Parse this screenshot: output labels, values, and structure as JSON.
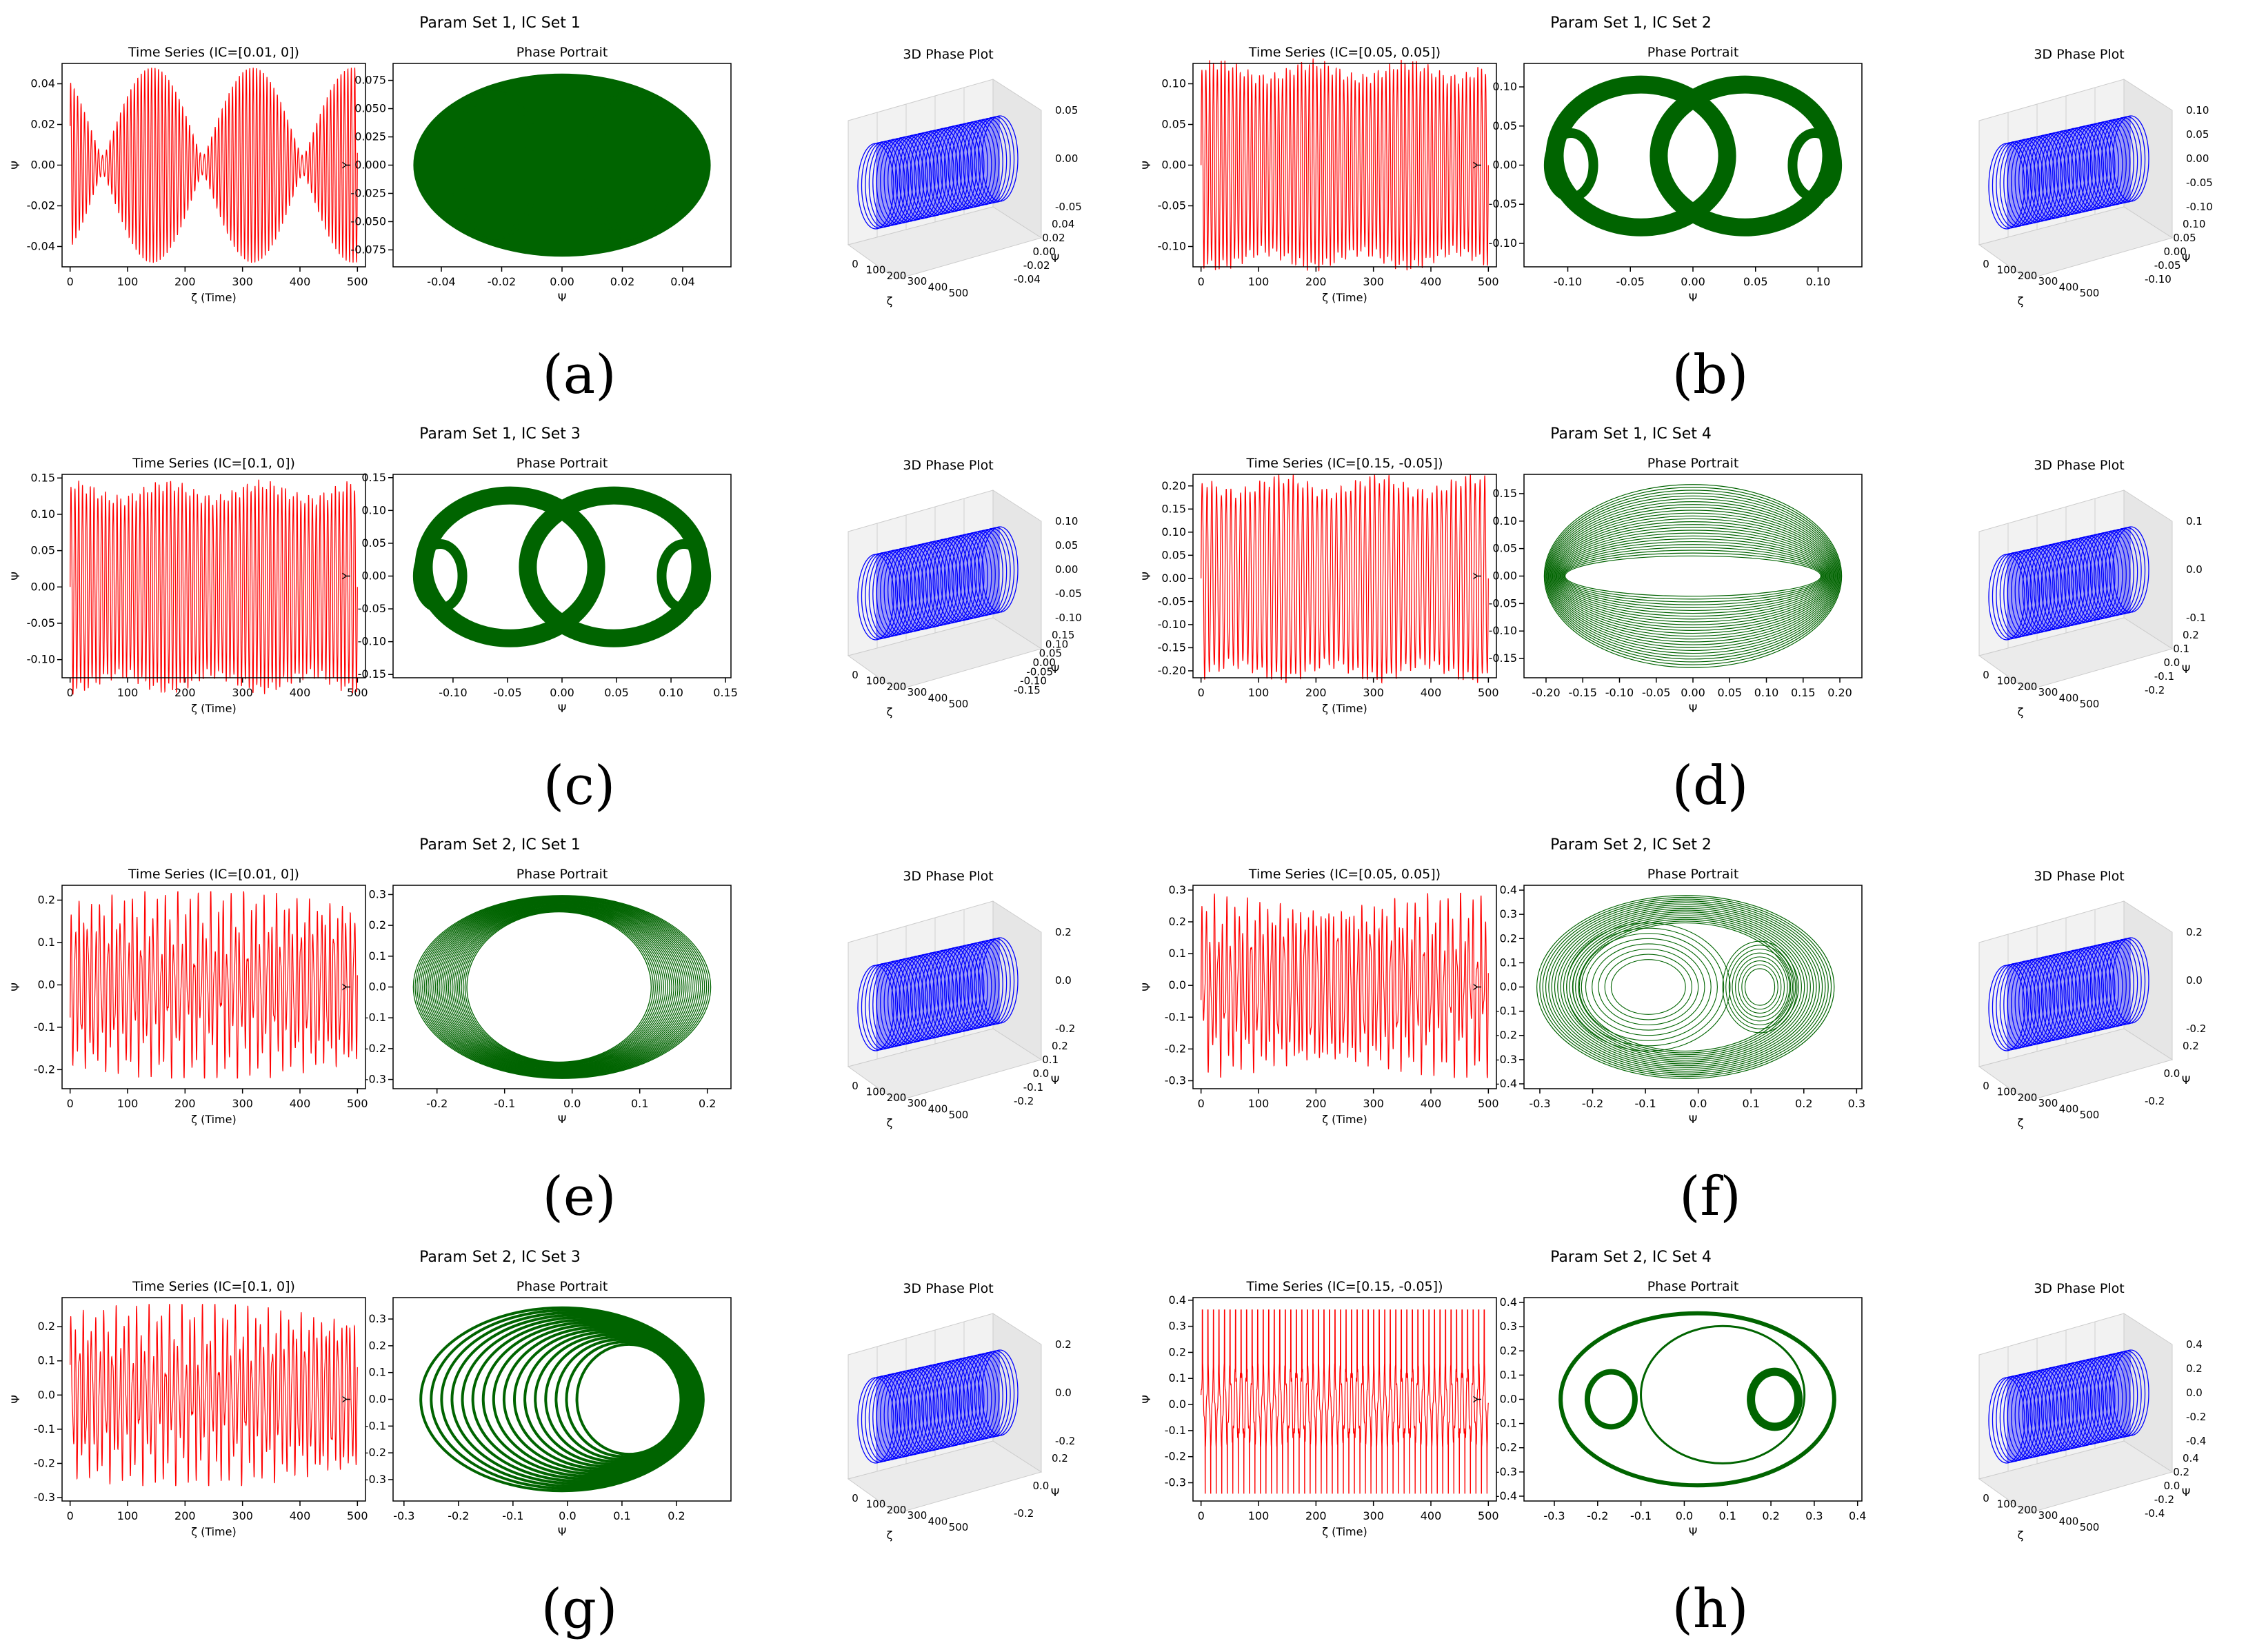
{
  "colors": {
    "time_series": "#ff0000",
    "phase_portrait": "#006400",
    "phase_3d": "#0000ff",
    "axes": "#000000",
    "pane": "#f2f2f2"
  },
  "panels": [
    {
      "id": "a",
      "caption": "(a)",
      "suptitle": "Param Set 1, IC Set 1",
      "time_series": {
        "title": "Time Series (IC=[0.01, 0])",
        "xlabel": "ζ (Time)",
        "ylabel": "Ψ",
        "xlim": [
          -14,
          514
        ],
        "ylim": [
          -0.05,
          0.05
        ],
        "xticks": [
          "0",
          "100",
          "200",
          "300",
          "400",
          "500"
        ],
        "yticks": [
          "-0.04",
          "-0.02",
          "0.00",
          "0.02",
          "0.04"
        ],
        "style": "beats",
        "amplitude": 0.048,
        "cycles": 82
      },
      "phase_portrait": {
        "title": "Phase Portrait",
        "xlabel": "Ψ",
        "ylabel": "Y",
        "xlim": [
          -0.056,
          0.056
        ],
        "ylim": [
          -0.09,
          0.09
        ],
        "xticks": [
          "-0.04",
          "-0.02",
          "0.00",
          "0.02",
          "0.04"
        ],
        "yticks": [
          "-0.075",
          "-0.050",
          "-0.025",
          "0.000",
          "0.025",
          "0.050",
          "0.075"
        ],
        "style": "torus"
      },
      "phase_3d": {
        "title": "3D Phase Plot",
        "xlabel": "ζ",
        "ylabel": "Ψ",
        "xticks": [
          "0",
          "100",
          "200",
          "300",
          "400",
          "500"
        ],
        "yticks": [
          "0.04",
          "0.02",
          "0.00",
          "-0.02",
          "-0.04"
        ],
        "zticks": [
          "0.05",
          "0.00",
          "-0.05"
        ]
      }
    },
    {
      "id": "b",
      "caption": "(b)",
      "suptitle": "Param Set 1, IC Set 2",
      "time_series": {
        "title": "Time Series (IC=[0.05, 0.05])",
        "xlabel": "ζ (Time)",
        "ylabel": "Ψ",
        "xlim": [
          -14,
          514
        ],
        "ylim": [
          -0.125,
          0.125
        ],
        "xticks": [
          "0",
          "100",
          "200",
          "300",
          "400",
          "500"
        ],
        "yticks": [
          "-0.10",
          "-0.05",
          "0.00",
          "0.05",
          "0.10"
        ],
        "style": "dense",
        "amplitude": 0.115,
        "cycles": 75
      },
      "phase_portrait": {
        "title": "Phase Portrait",
        "xlabel": "Ψ",
        "ylabel": "Y",
        "xlim": [
          -0.135,
          0.135
        ],
        "ylim": [
          -0.13,
          0.13
        ],
        "xticks": [
          "-0.10",
          "-0.05",
          "0.00",
          "0.05",
          "0.10"
        ],
        "yticks": [
          "-0.10",
          "-0.05",
          "0.00",
          "0.05",
          "0.10"
        ],
        "style": "twin-lobes"
      },
      "phase_3d": {
        "title": "3D Phase Plot",
        "xlabel": "ζ",
        "ylabel": "Ψ",
        "xticks": [
          "0",
          "100",
          "200",
          "300",
          "400",
          "500"
        ],
        "yticks": [
          "0.10",
          "0.05",
          "0.00",
          "-0.05",
          "-0.10"
        ],
        "zticks": [
          "0.10",
          "0.05",
          "0.00",
          "-0.05",
          "-0.10"
        ]
      }
    },
    {
      "id": "c",
      "caption": "(c)",
      "suptitle": "Param Set 1, IC Set 3",
      "time_series": {
        "title": "Time Series (IC=[0.1, 0])",
        "xlabel": "ζ (Time)",
        "ylabel": "Ψ",
        "xlim": [
          -14,
          514
        ],
        "ylim": [
          -0.125,
          0.155
        ],
        "xticks": [
          "0",
          "100",
          "200",
          "300",
          "400",
          "500"
        ],
        "yticks": [
          "-0.10",
          "-0.05",
          "0.00",
          "0.05",
          "0.10",
          "0.15"
        ],
        "style": "dense",
        "amplitude": 0.13,
        "cycles": 75
      },
      "phase_portrait": {
        "title": "Phase Portrait",
        "xlabel": "Ψ",
        "ylabel": "Y",
        "xlim": [
          -0.155,
          0.155
        ],
        "ylim": [
          -0.155,
          0.155
        ],
        "xticks": [
          "-0.10",
          "-0.05",
          "0.00",
          "0.05",
          "0.10",
          "0.15"
        ],
        "yticks": [
          "-0.15",
          "-0.10",
          "-0.05",
          "0.00",
          "0.05",
          "0.10",
          "0.15"
        ],
        "style": "twin-lobes"
      },
      "phase_3d": {
        "title": "3D Phase Plot",
        "xlabel": "ζ",
        "ylabel": "Ψ",
        "xticks": [
          "0",
          "100",
          "200",
          "300",
          "400",
          "500"
        ],
        "yticks": [
          "0.15",
          "0.10",
          "0.05",
          "0.00",
          "-0.05",
          "-0.10",
          "-0.15"
        ],
        "zticks": [
          "0.10",
          "0.05",
          "0.00",
          "-0.05",
          "-0.10"
        ]
      }
    },
    {
      "id": "d",
      "caption": "(d)",
      "suptitle": "Param Set 1, IC Set 4",
      "time_series": {
        "title": "Time Series (IC=[0.15, -0.05])",
        "xlabel": "ζ (Time)",
        "ylabel": "Ψ",
        "xlim": [
          -14,
          514
        ],
        "ylim": [
          -0.215,
          0.225
        ],
        "xticks": [
          "0",
          "100",
          "200",
          "300",
          "400",
          "500"
        ],
        "yticks": [
          "-0.20",
          "-0.15",
          "-0.10",
          "-0.05",
          "0.00",
          "0.05",
          "0.10",
          "0.15",
          "0.20"
        ],
        "style": "dense",
        "amplitude": 0.2,
        "cycles": 60
      },
      "phase_portrait": {
        "title": "Phase Portrait",
        "xlabel": "Ψ",
        "ylabel": "Y",
        "xlim": [
          -0.23,
          0.23
        ],
        "ylim": [
          -0.185,
          0.185
        ],
        "xticks": [
          "-0.20",
          "-0.15",
          "-0.10",
          "-0.05",
          "0.00",
          "0.05",
          "0.10",
          "0.15",
          "0.20"
        ],
        "yticks": [
          "-0.15",
          "-0.10",
          "-0.05",
          "0.00",
          "0.05",
          "0.10",
          "0.15"
        ],
        "style": "ring-mesh"
      },
      "phase_3d": {
        "title": "3D Phase Plot",
        "xlabel": "ζ",
        "ylabel": "Ψ",
        "xticks": [
          "0",
          "100",
          "200",
          "300",
          "400",
          "500"
        ],
        "yticks": [
          "0.2",
          "0.1",
          "0.0",
          "-0.1",
          "-0.2"
        ],
        "zticks": [
          "0.1",
          "0.0",
          "-0.1"
        ]
      }
    },
    {
      "id": "e",
      "caption": "(e)",
      "suptitle": "Param Set 2, IC Set 1",
      "time_series": {
        "title": "Time Series (IC=[0.01, 0])",
        "xlabel": "ζ (Time)",
        "ylabel": "Ψ",
        "xlim": [
          -14,
          514
        ],
        "ylim": [
          -0.245,
          0.235
        ],
        "xticks": [
          "0",
          "100",
          "200",
          "300",
          "400",
          "500"
        ],
        "yticks": [
          "-0.2",
          "-0.1",
          "0.0",
          "0.1",
          "0.2"
        ],
        "style": "chaotic",
        "amplitude": 0.22,
        "cycles": 70
      },
      "phase_portrait": {
        "title": "Phase Portrait",
        "xlabel": "Ψ",
        "ylabel": "Y",
        "xlim": [
          -0.265,
          0.235
        ],
        "ylim": [
          -0.33,
          0.33
        ],
        "xticks": [
          "-0.2",
          "-0.1",
          "0.0",
          "0.1",
          "0.2"
        ],
        "yticks": [
          "-0.3",
          "-0.2",
          "-0.1",
          "0.0",
          "0.1",
          "0.2",
          "0.3"
        ],
        "style": "crescent"
      },
      "phase_3d": {
        "title": "3D Phase Plot",
        "xlabel": "ζ",
        "ylabel": "Ψ",
        "xticks": [
          "0",
          "100",
          "200",
          "300",
          "400",
          "500"
        ],
        "yticks": [
          "0.2",
          "0.1",
          "0.0",
          "-0.1",
          "-0.2"
        ],
        "zticks": [
          "0.2",
          "0.0",
          "-0.2"
        ]
      }
    },
    {
      "id": "f",
      "caption": "(f)",
      "suptitle": "Param Set 2, IC Set 2",
      "time_series": {
        "title": "Time Series (IC=[0.05, 0.05])",
        "xlabel": "ζ (Time)",
        "ylabel": "Ψ",
        "xlim": [
          -14,
          514
        ],
        "ylim": [
          -0.325,
          0.315
        ],
        "xticks": [
          "0",
          "100",
          "200",
          "300",
          "400",
          "500"
        ],
        "yticks": [
          "-0.3",
          "-0.2",
          "-0.1",
          "0.0",
          "0.1",
          "0.2",
          "0.3"
        ],
        "style": "chaotic",
        "amplitude": 0.29,
        "cycles": 70
      },
      "phase_portrait": {
        "title": "Phase Portrait",
        "xlabel": "Ψ",
        "ylabel": "Y",
        "xlim": [
          -0.33,
          0.31
        ],
        "ylim": [
          -0.42,
          0.42
        ],
        "xticks": [
          "-0.3",
          "-0.2",
          "-0.1",
          "0.0",
          "0.1",
          "0.2",
          "0.3"
        ],
        "yticks": [
          "-0.4",
          "-0.3",
          "-0.2",
          "-0.1",
          "0.0",
          "0.1",
          "0.2",
          "0.3",
          "0.4"
        ],
        "style": "nested-loops"
      },
      "phase_3d": {
        "title": "3D Phase Plot",
        "xlabel": "ζ",
        "ylabel": "Ψ",
        "xticks": [
          "0",
          "100",
          "200",
          "300",
          "400",
          "500"
        ],
        "yticks": [
          "0.2",
          "0.0",
          "-0.2"
        ],
        "zticks": [
          "0.2",
          "0.0",
          "-0.2"
        ]
      }
    },
    {
      "id": "g",
      "caption": "(g)",
      "suptitle": "Param Set 2, IC Set 3",
      "time_series": {
        "title": "Time Series (IC=[0.1, 0])",
        "xlabel": "ζ (Time)",
        "ylabel": "Ψ",
        "xlim": [
          -14,
          514
        ],
        "ylim": [
          -0.31,
          0.285
        ],
        "xticks": [
          "0",
          "100",
          "200",
          "300",
          "400",
          "500"
        ],
        "yticks": [
          "-0.3",
          "-0.2",
          "-0.1",
          "0.0",
          "0.1",
          "0.2"
        ],
        "style": "chaotic",
        "amplitude": 0.265,
        "cycles": 70
      },
      "phase_portrait": {
        "title": "Phase Portrait",
        "xlabel": "Ψ",
        "ylabel": "Y",
        "xlim": [
          -0.32,
          0.3
        ],
        "ylim": [
          -0.38,
          0.38
        ],
        "xticks": [
          "-0.3",
          "-0.2",
          "-0.1",
          "0.0",
          "0.1",
          "0.2"
        ],
        "yticks": [
          "-0.3",
          "-0.2",
          "-0.1",
          "0.0",
          "0.1",
          "0.2",
          "0.3"
        ],
        "style": "shifted-rings"
      },
      "phase_3d": {
        "title": "3D Phase Plot",
        "xlabel": "ζ",
        "ylabel": "Ψ",
        "xticks": [
          "0",
          "100",
          "200",
          "300",
          "400",
          "500"
        ],
        "yticks": [
          "0.2",
          "0.0",
          "-0.2"
        ],
        "zticks": [
          "0.2",
          "0.0",
          "-0.2"
        ]
      }
    },
    {
      "id": "h",
      "caption": "(h)",
      "suptitle": "Param Set 2, IC Set 4",
      "time_series": {
        "title": "Time Series (IC=[0.15, -0.05])",
        "xlabel": "ζ (Time)",
        "ylabel": "Ψ",
        "xlim": [
          -14,
          514
        ],
        "ylim": [
          -0.37,
          0.41
        ],
        "xticks": [
          "0",
          "100",
          "200",
          "300",
          "400",
          "500"
        ],
        "yticks": [
          "-0.3",
          "-0.2",
          "-0.1",
          "0.0",
          "0.1",
          "0.2",
          "0.3",
          "0.4"
        ],
        "style": "spiky",
        "amplitude": 0.37,
        "cycles": 52
      },
      "phase_portrait": {
        "title": "Phase Portrait",
        "xlabel": "Ψ",
        "ylabel": "Y",
        "xlim": [
          -0.37,
          0.41
        ],
        "ylim": [
          -0.42,
          0.42
        ],
        "xticks": [
          "-0.3",
          "-0.2",
          "-0.1",
          "0.0",
          "0.1",
          "0.2",
          "0.3",
          "0.4"
        ],
        "yticks": [
          "-0.4",
          "-0.3",
          "-0.2",
          "-0.1",
          "0.0",
          "0.1",
          "0.2",
          "0.3",
          "0.4"
        ],
        "style": "separate-loops"
      },
      "phase_3d": {
        "title": "3D Phase Plot",
        "xlabel": "ζ",
        "ylabel": "Ψ",
        "xticks": [
          "0",
          "100",
          "200",
          "300",
          "400",
          "500"
        ],
        "yticks": [
          "0.4",
          "0.2",
          "0.0",
          "-0.2",
          "-0.4"
        ],
        "zticks": [
          "0.4",
          "0.2",
          "0.0",
          "-0.2",
          "-0.4"
        ]
      }
    }
  ],
  "chart_data": [
    {
      "type": "line",
      "panel": "a",
      "plot": "time series",
      "title": "Time Series (IC=[0.01, 0])",
      "xlabel": "ζ (Time)",
      "ylabel": "Ψ",
      "x_range": [
        0,
        500
      ],
      "ylim": [
        -0.05,
        0.05
      ],
      "envelope_amplitude": 0.048
    },
    {
      "type": "line",
      "panel": "a",
      "plot": "phase portrait",
      "title": "Phase Portrait",
      "xlabel": "Ψ",
      "ylabel": "Y",
      "x_extent": [
        -0.048,
        0.048
      ],
      "y_extent": [
        -0.083,
        0.083
      ]
    },
    {
      "type": "line",
      "panel": "b",
      "plot": "time series",
      "title": "Time Series (IC=[0.05, 0.05])",
      "xlabel": "ζ (Time)",
      "ylabel": "Ψ",
      "x_range": [
        0,
        500
      ],
      "ylim": [
        -0.125,
        0.125
      ],
      "envelope_amplitude": 0.115
    },
    {
      "type": "line",
      "panel": "b",
      "plot": "phase portrait",
      "title": "Phase Portrait",
      "xlabel": "Ψ",
      "ylabel": "Y",
      "x_extent": [
        -0.12,
        0.12
      ],
      "y_extent": [
        -0.12,
        0.12
      ]
    },
    {
      "type": "line",
      "panel": "c",
      "plot": "time series",
      "title": "Time Series (IC=[0.1, 0])",
      "xlabel": "ζ (Time)",
      "ylabel": "Ψ",
      "x_range": [
        0,
        500
      ],
      "ylim": [
        -0.125,
        0.155
      ],
      "envelope_amplitude": 0.13
    },
    {
      "type": "line",
      "panel": "c",
      "plot": "phase portrait",
      "title": "Phase Portrait",
      "xlabel": "Ψ",
      "ylabel": "Y",
      "x_extent": [
        -0.14,
        0.14
      ],
      "y_extent": [
        -0.14,
        0.14
      ]
    },
    {
      "type": "line",
      "panel": "d",
      "plot": "time series",
      "title": "Time Series (IC=[0.15, -0.05])",
      "xlabel": "ζ (Time)",
      "ylabel": "Ψ",
      "x_range": [
        0,
        500
      ],
      "ylim": [
        -0.215,
        0.225
      ],
      "envelope_amplitude": 0.2
    },
    {
      "type": "line",
      "panel": "d",
      "plot": "phase portrait",
      "title": "Phase Portrait",
      "xlabel": "Ψ",
      "ylabel": "Y",
      "x_extent": [
        -0.21,
        0.21
      ],
      "y_extent": [
        -0.16,
        0.16
      ]
    },
    {
      "type": "line",
      "panel": "e",
      "plot": "time series",
      "title": "Time Series (IC=[0.01, 0])",
      "xlabel": "ζ (Time)",
      "ylabel": "Ψ",
      "x_range": [
        0,
        500
      ],
      "ylim": [
        -0.245,
        0.235
      ],
      "envelope_amplitude": 0.22
    },
    {
      "type": "line",
      "panel": "e",
      "plot": "phase portrait",
      "title": "Phase Portrait",
      "xlabel": "Ψ",
      "ylabel": "Y",
      "x_extent": [
        -0.24,
        0.22
      ],
      "y_extent": [
        -0.3,
        0.3
      ]
    },
    {
      "type": "line",
      "panel": "f",
      "plot": "time series",
      "title": "Time Series (IC=[0.05, 0.05])",
      "xlabel": "ζ (Time)",
      "ylabel": "Ψ",
      "x_range": [
        0,
        500
      ],
      "ylim": [
        -0.325,
        0.315
      ],
      "envelope_amplitude": 0.29
    },
    {
      "type": "line",
      "panel": "f",
      "plot": "phase portrait",
      "title": "Phase Portrait",
      "xlabel": "Ψ",
      "ylabel": "Y",
      "x_extent": [
        -0.3,
        0.29
      ],
      "y_extent": [
        -0.38,
        0.38
      ]
    },
    {
      "type": "line",
      "panel": "g",
      "plot": "time series",
      "title": "Time Series (IC=[0.1, 0])",
      "xlabel": "ζ (Time)",
      "ylabel": "Ψ",
      "x_range": [
        0,
        500
      ],
      "ylim": [
        -0.31,
        0.285
      ],
      "envelope_amplitude": 0.265
    },
    {
      "type": "line",
      "panel": "g",
      "plot": "phase portrait",
      "title": "Phase Portrait",
      "xlabel": "Ψ",
      "ylabel": "Y",
      "x_extent": [
        -0.29,
        0.27
      ],
      "y_extent": [
        -0.35,
        0.35
      ]
    },
    {
      "type": "line",
      "panel": "h",
      "plot": "time series",
      "title": "Time Series (IC=[0.15, -0.05])",
      "xlabel": "ζ (Time)",
      "ylabel": "Ψ",
      "x_range": [
        0,
        500
      ],
      "ylim": [
        -0.37,
        0.41
      ],
      "envelope_amplitude": 0.37
    },
    {
      "type": "line",
      "panel": "h",
      "plot": "phase portrait",
      "title": "Phase Portrait",
      "xlabel": "Ψ",
      "ylabel": "Y",
      "x_extent": [
        -0.34,
        0.39
      ],
      "y_extent": [
        -0.39,
        0.39
      ]
    }
  ]
}
